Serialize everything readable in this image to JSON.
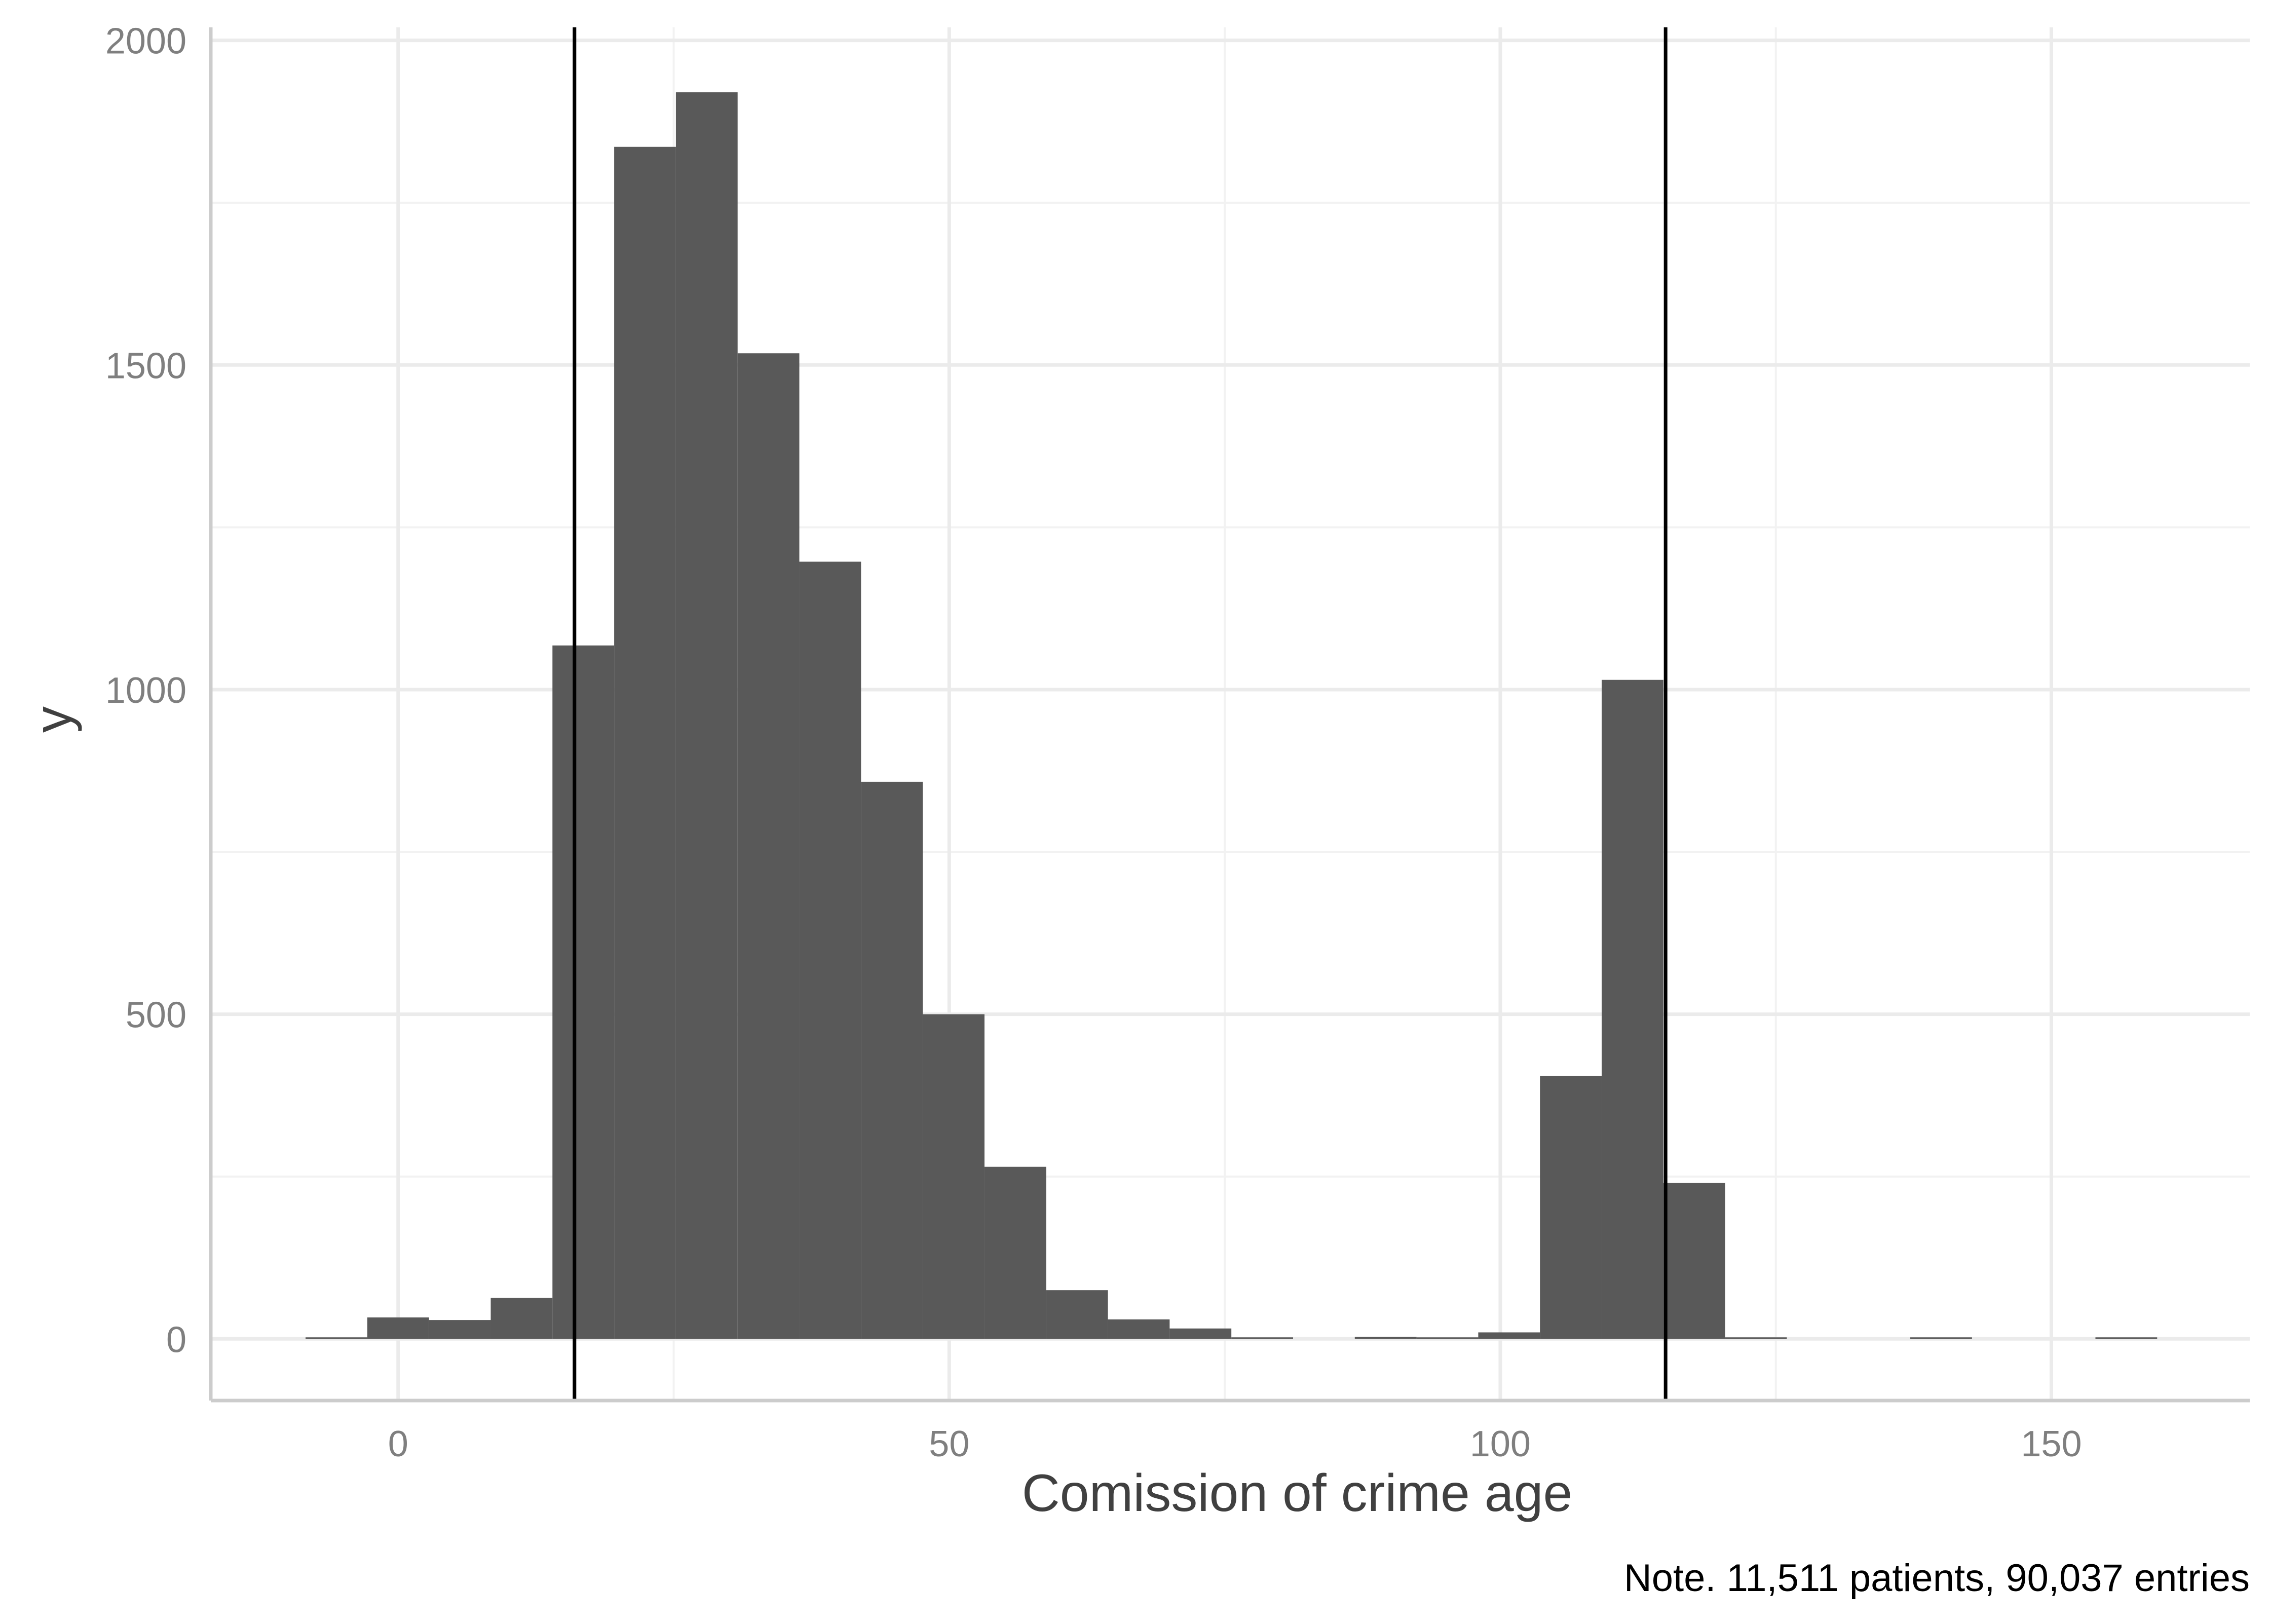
{
  "chart_data": {
    "type": "bar",
    "xlabel": "Comission of crime age",
    "ylabel": "y",
    "note": "Note. 11,511 patients, 90,037 entries",
    "xlim": [
      -17,
      168
    ],
    "ylim": [
      -95,
      2020
    ],
    "x_ticks": [
      0,
      50,
      100,
      150
    ],
    "x_tick_labels": [
      "0",
      "50",
      "100",
      "150"
    ],
    "y_ticks": [
      0,
      500,
      1000,
      1500,
      2000
    ],
    "y_tick_labels": [
      "0",
      "500",
      "1000",
      "1500",
      "2000"
    ],
    "y_minor_ticks": [
      250,
      750,
      1250,
      1750
    ],
    "x_minor_ticks": [
      25,
      75,
      125
    ],
    "grid": true,
    "bin_width": 5.6,
    "bins": [
      {
        "x0": -8.4,
        "x1": -2.8,
        "count": 2
      },
      {
        "x0": -2.8,
        "x1": 2.8,
        "count": 33
      },
      {
        "x0": 2.8,
        "x1": 8.4,
        "count": 29
      },
      {
        "x0": 8.4,
        "x1": 14.0,
        "count": 63
      },
      {
        "x0": 14.0,
        "x1": 19.6,
        "count": 1068
      },
      {
        "x0": 19.6,
        "x1": 25.2,
        "count": 1836
      },
      {
        "x0": 25.2,
        "x1": 30.8,
        "count": 1920
      },
      {
        "x0": 30.8,
        "x1": 36.4,
        "count": 1518
      },
      {
        "x0": 36.4,
        "x1": 42.0,
        "count": 1197
      },
      {
        "x0": 42.0,
        "x1": 47.6,
        "count": 858
      },
      {
        "x0": 47.6,
        "x1": 53.2,
        "count": 500
      },
      {
        "x0": 53.2,
        "x1": 58.8,
        "count": 265
      },
      {
        "x0": 58.8,
        "x1": 64.4,
        "count": 75
      },
      {
        "x0": 64.4,
        "x1": 70.0,
        "count": 30
      },
      {
        "x0": 70.0,
        "x1": 75.6,
        "count": 16
      },
      {
        "x0": 75.6,
        "x1": 81.2,
        "count": 2
      },
      {
        "x0": 86.8,
        "x1": 92.4,
        "count": 3
      },
      {
        "x0": 92.4,
        "x1": 98.0,
        "count": 2
      },
      {
        "x0": 98.0,
        "x1": 103.6,
        "count": 10
      },
      {
        "x0": 103.6,
        "x1": 109.2,
        "count": 405
      },
      {
        "x0": 109.2,
        "x1": 114.8,
        "count": 1015
      },
      {
        "x0": 114.8,
        "x1": 120.4,
        "count": 240
      },
      {
        "x0": 120.4,
        "x1": 126.0,
        "count": 2
      },
      {
        "x0": 137.2,
        "x1": 142.8,
        "count": 1
      },
      {
        "x0": 154.0,
        "x1": 159.6,
        "count": 1
      }
    ],
    "vlines": [
      16,
      115
    ],
    "colors": {
      "bar": "#595959",
      "vline": "#000000",
      "grid_major": "#ebebeb",
      "grid_minor": "#f2f2f2",
      "axis": "#cccccc"
    }
  }
}
